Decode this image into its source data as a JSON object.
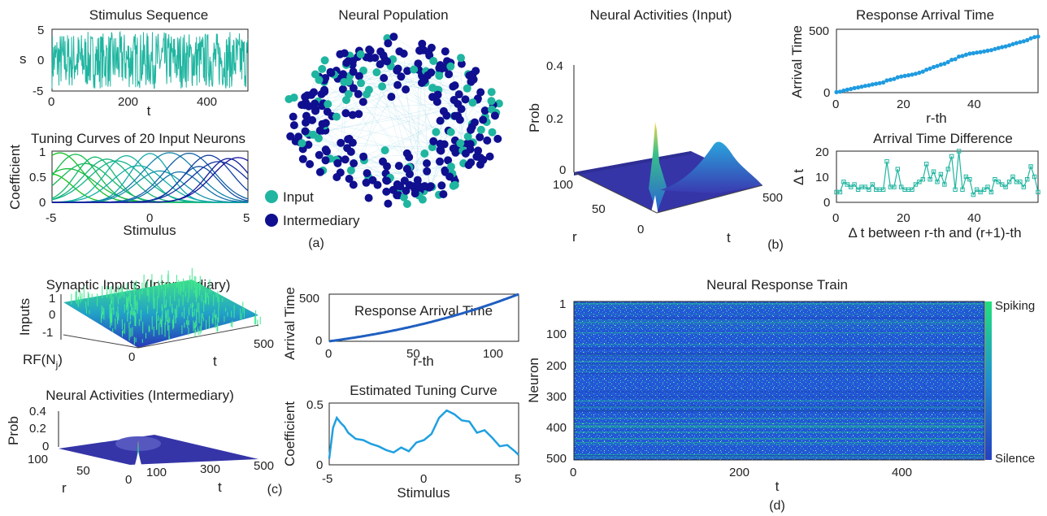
{
  "colors": {
    "teal": "#1fb5a0",
    "dark_blue": "#0f0f8f",
    "light_blue": "#1f9be0",
    "plot_dark": "#3b3b9e",
    "heat_blue": "#2457d6",
    "heat_green": "#22e07a"
  },
  "panel_labels": {
    "a": "(a)",
    "b": "(b)",
    "c": "(c)",
    "d": "(d)"
  },
  "chart_data": [
    {
      "id": "stimulus",
      "type": "line",
      "title": "Stimulus Sequence",
      "xlabel": "t",
      "ylabel": "s",
      "xlim": [
        0,
        500
      ],
      "ylim": [
        -5,
        5
      ],
      "xticks": [
        "0",
        "200",
        "400"
      ],
      "yticks": [
        "5",
        "0",
        "-5"
      ]
    },
    {
      "id": "tuning",
      "type": "line",
      "title": "Tuning Curves of 20 Input Neurons",
      "xlabel": "Stimulus",
      "ylabel": "Coefficient",
      "xlim": [
        -5,
        5
      ],
      "ylim": [
        0,
        1
      ],
      "xticks": [
        "-5",
        "0",
        "5"
      ],
      "yticks": [
        "1",
        "0.5",
        "0"
      ]
    },
    {
      "id": "population",
      "type": "scatter",
      "title": "Neural Population",
      "series": [
        {
          "name": "Input"
        },
        {
          "name": "Intermediary"
        }
      ]
    },
    {
      "id": "activities_input",
      "type": "area",
      "title": "Neural Activities (Input)",
      "xlabel": "t",
      "ylabel": "r",
      "zlabel": "Prob",
      "zticks": [
        "0.4",
        "0.2",
        "0"
      ],
      "rticks": [
        "100",
        "50",
        "0"
      ],
      "tticks": [
        "500"
      ]
    },
    {
      "id": "arrival_b",
      "type": "line",
      "title": "Response Arrival Time",
      "xlabel": "r-th",
      "ylabel": "Arrival Time",
      "xlim": [
        0,
        56
      ],
      "ylim": [
        0,
        500
      ],
      "xticks": [
        "0",
        "20",
        "40"
      ],
      "yticks": [
        "500",
        "0"
      ]
    },
    {
      "id": "diff_b",
      "type": "line",
      "title": "Arrival Time Difference",
      "xlabel": "Δ t between r-th and (r+1)-th",
      "ylabel": "Δ t",
      "xlim": [
        0,
        56
      ],
      "ylim": [
        0,
        20
      ],
      "xticks": [
        "0",
        "20",
        "40"
      ],
      "yticks": [
        "20",
        "10",
        "0"
      ],
      "values": [
        4,
        4,
        8,
        7,
        6,
        7,
        5,
        6,
        6,
        5,
        7,
        5,
        5,
        5,
        16,
        6,
        6,
        13,
        6,
        5,
        5,
        5,
        7,
        8,
        9,
        15,
        9,
        12,
        8,
        11,
        7,
        13,
        18,
        5,
        20,
        5,
        10,
        9,
        3,
        5,
        4,
        5,
        6,
        4,
        9,
        8,
        7,
        6,
        8,
        10,
        8,
        8,
        6,
        9,
        14,
        10,
        4
      ]
    },
    {
      "id": "synaptic",
      "type": "area",
      "title": "Synaptic Inputs (Intermediary)",
      "xlabel": "t",
      "ylabel": "RF(N",
      "ylabel_sub": "j",
      "ylabel_end": ")",
      "zlabel": "Inputs",
      "zticks": [
        "1",
        "0",
        "-1"
      ],
      "tticks": [
        "0",
        "500"
      ]
    },
    {
      "id": "arrival_c",
      "type": "line",
      "title": "Response Arrival Time",
      "xlabel": "r-th",
      "ylabel": "Arrival Time",
      "xlim": [
        0,
        116
      ],
      "ylim": [
        0,
        500
      ],
      "xticks": [
        "0",
        "50",
        "100"
      ],
      "yticks": [
        "500",
        "0"
      ]
    },
    {
      "id": "activities_inter",
      "type": "area",
      "title": "Neural Activities (Intermediary)",
      "xlabel": "t",
      "ylabel": "r",
      "zlabel": "Prob",
      "zticks": [
        "0.4",
        "0.2",
        "0"
      ],
      "rticks": [
        "100",
        "50",
        "0"
      ],
      "tticks": [
        "100",
        "300",
        "500"
      ]
    },
    {
      "id": "est_tuning",
      "type": "line",
      "title": "Estimated Tuning Curve",
      "xlabel": "Stimulus",
      "ylabel": "Coefficient",
      "xlim": [
        -5,
        5
      ],
      "ylim": [
        0,
        0.5
      ],
      "xticks": [
        "-5",
        "0",
        "5"
      ],
      "yticks": [
        "0.5",
        "0"
      ],
      "x": [
        -5,
        -4.8,
        -4.6,
        -4.4,
        -4.2,
        -4,
        -3.6,
        -3.2,
        -2.8,
        -2.4,
        -2,
        -1.6,
        -1.2,
        -0.8,
        -0.4,
        0,
        0.4,
        0.8,
        1.2,
        1.6,
        2,
        2.4,
        2.8,
        3.2,
        3.6,
        4,
        4.4,
        4.8,
        5
      ],
      "values": [
        0.05,
        0.3,
        0.38,
        0.34,
        0.31,
        0.26,
        0.21,
        0.2,
        0.17,
        0.15,
        0.12,
        0.1,
        0.14,
        0.11,
        0.18,
        0.2,
        0.25,
        0.38,
        0.44,
        0.41,
        0.36,
        0.35,
        0.26,
        0.28,
        0.22,
        0.15,
        0.16,
        0.11,
        0.08
      ]
    },
    {
      "id": "raster",
      "type": "heatmap",
      "title": "Neural Response Train",
      "xlabel": "t",
      "ylabel": "Neuron",
      "xlim": [
        0,
        500
      ],
      "ylim": [
        1,
        500
      ],
      "xticks": [
        "0",
        "200",
        "400"
      ],
      "yticks": [
        "1",
        "100",
        "200",
        "300",
        "400",
        "500"
      ],
      "colorbar": {
        "top": "Spiking",
        "bottom": "Silence"
      }
    }
  ]
}
